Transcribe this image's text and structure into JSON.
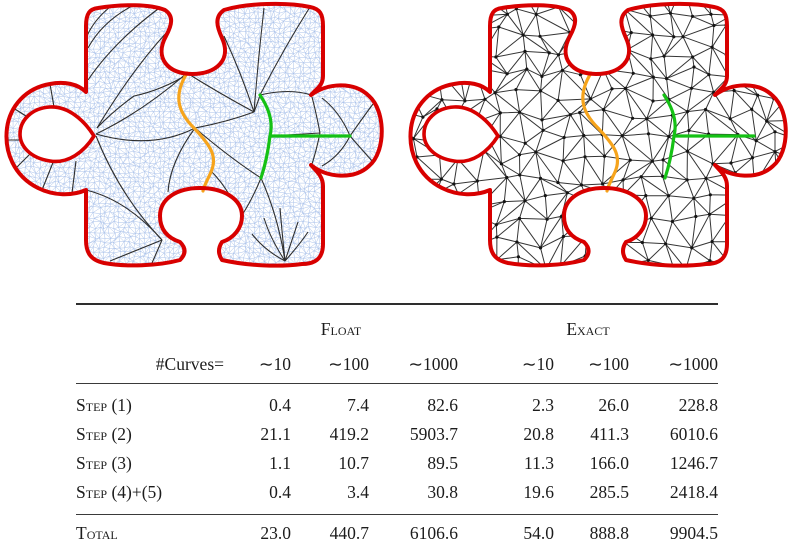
{
  "figures": {
    "left": {
      "outline_color": "#d80000",
      "mesh_color": "#a9c1ea",
      "patch_curve_color": "#2e2e2e",
      "orange_curve_color": "#f6a41c",
      "green_curve_color": "#15c115",
      "mesh_spacing": 5,
      "vertex_dots": false,
      "patch_curves": true
    },
    "right": {
      "outline_color": "#d80000",
      "mesh_color": "#353535",
      "patch_curve_color": "#2e2e2e",
      "orange_curve_color": "#f6a41c",
      "green_curve_color": "#15c115",
      "mesh_spacing": 21,
      "vertex_dots": true,
      "patch_curves": false
    }
  },
  "table": {
    "corner_label": "#Curves=",
    "groups": [
      {
        "label": "Float",
        "cols": [
          "∼10",
          "∼100",
          "∼1000"
        ]
      },
      {
        "label": "Exact",
        "cols": [
          "∼10",
          "∼100",
          "∼1000"
        ]
      }
    ],
    "rows": [
      {
        "label": "Step (1)",
        "values": [
          "0.4",
          "7.4",
          "82.6",
          "2.3",
          "26.0",
          "228.8"
        ]
      },
      {
        "label": "Step (2)",
        "values": [
          "21.1",
          "419.2",
          "5903.7",
          "20.8",
          "411.3",
          "6010.6"
        ]
      },
      {
        "label": "Step (3)",
        "values": [
          "1.1",
          "10.7",
          "89.5",
          "11.3",
          "166.0",
          "1246.7"
        ]
      },
      {
        "label": "Step (4)+(5)",
        "values": [
          "0.4",
          "3.4",
          "30.8",
          "19.6",
          "285.5",
          "2418.4"
        ]
      }
    ],
    "total": {
      "label": "Total",
      "values": [
        "23.0",
        "440.7",
        "6106.6",
        "54.0",
        "888.8",
        "9904.5"
      ]
    }
  }
}
